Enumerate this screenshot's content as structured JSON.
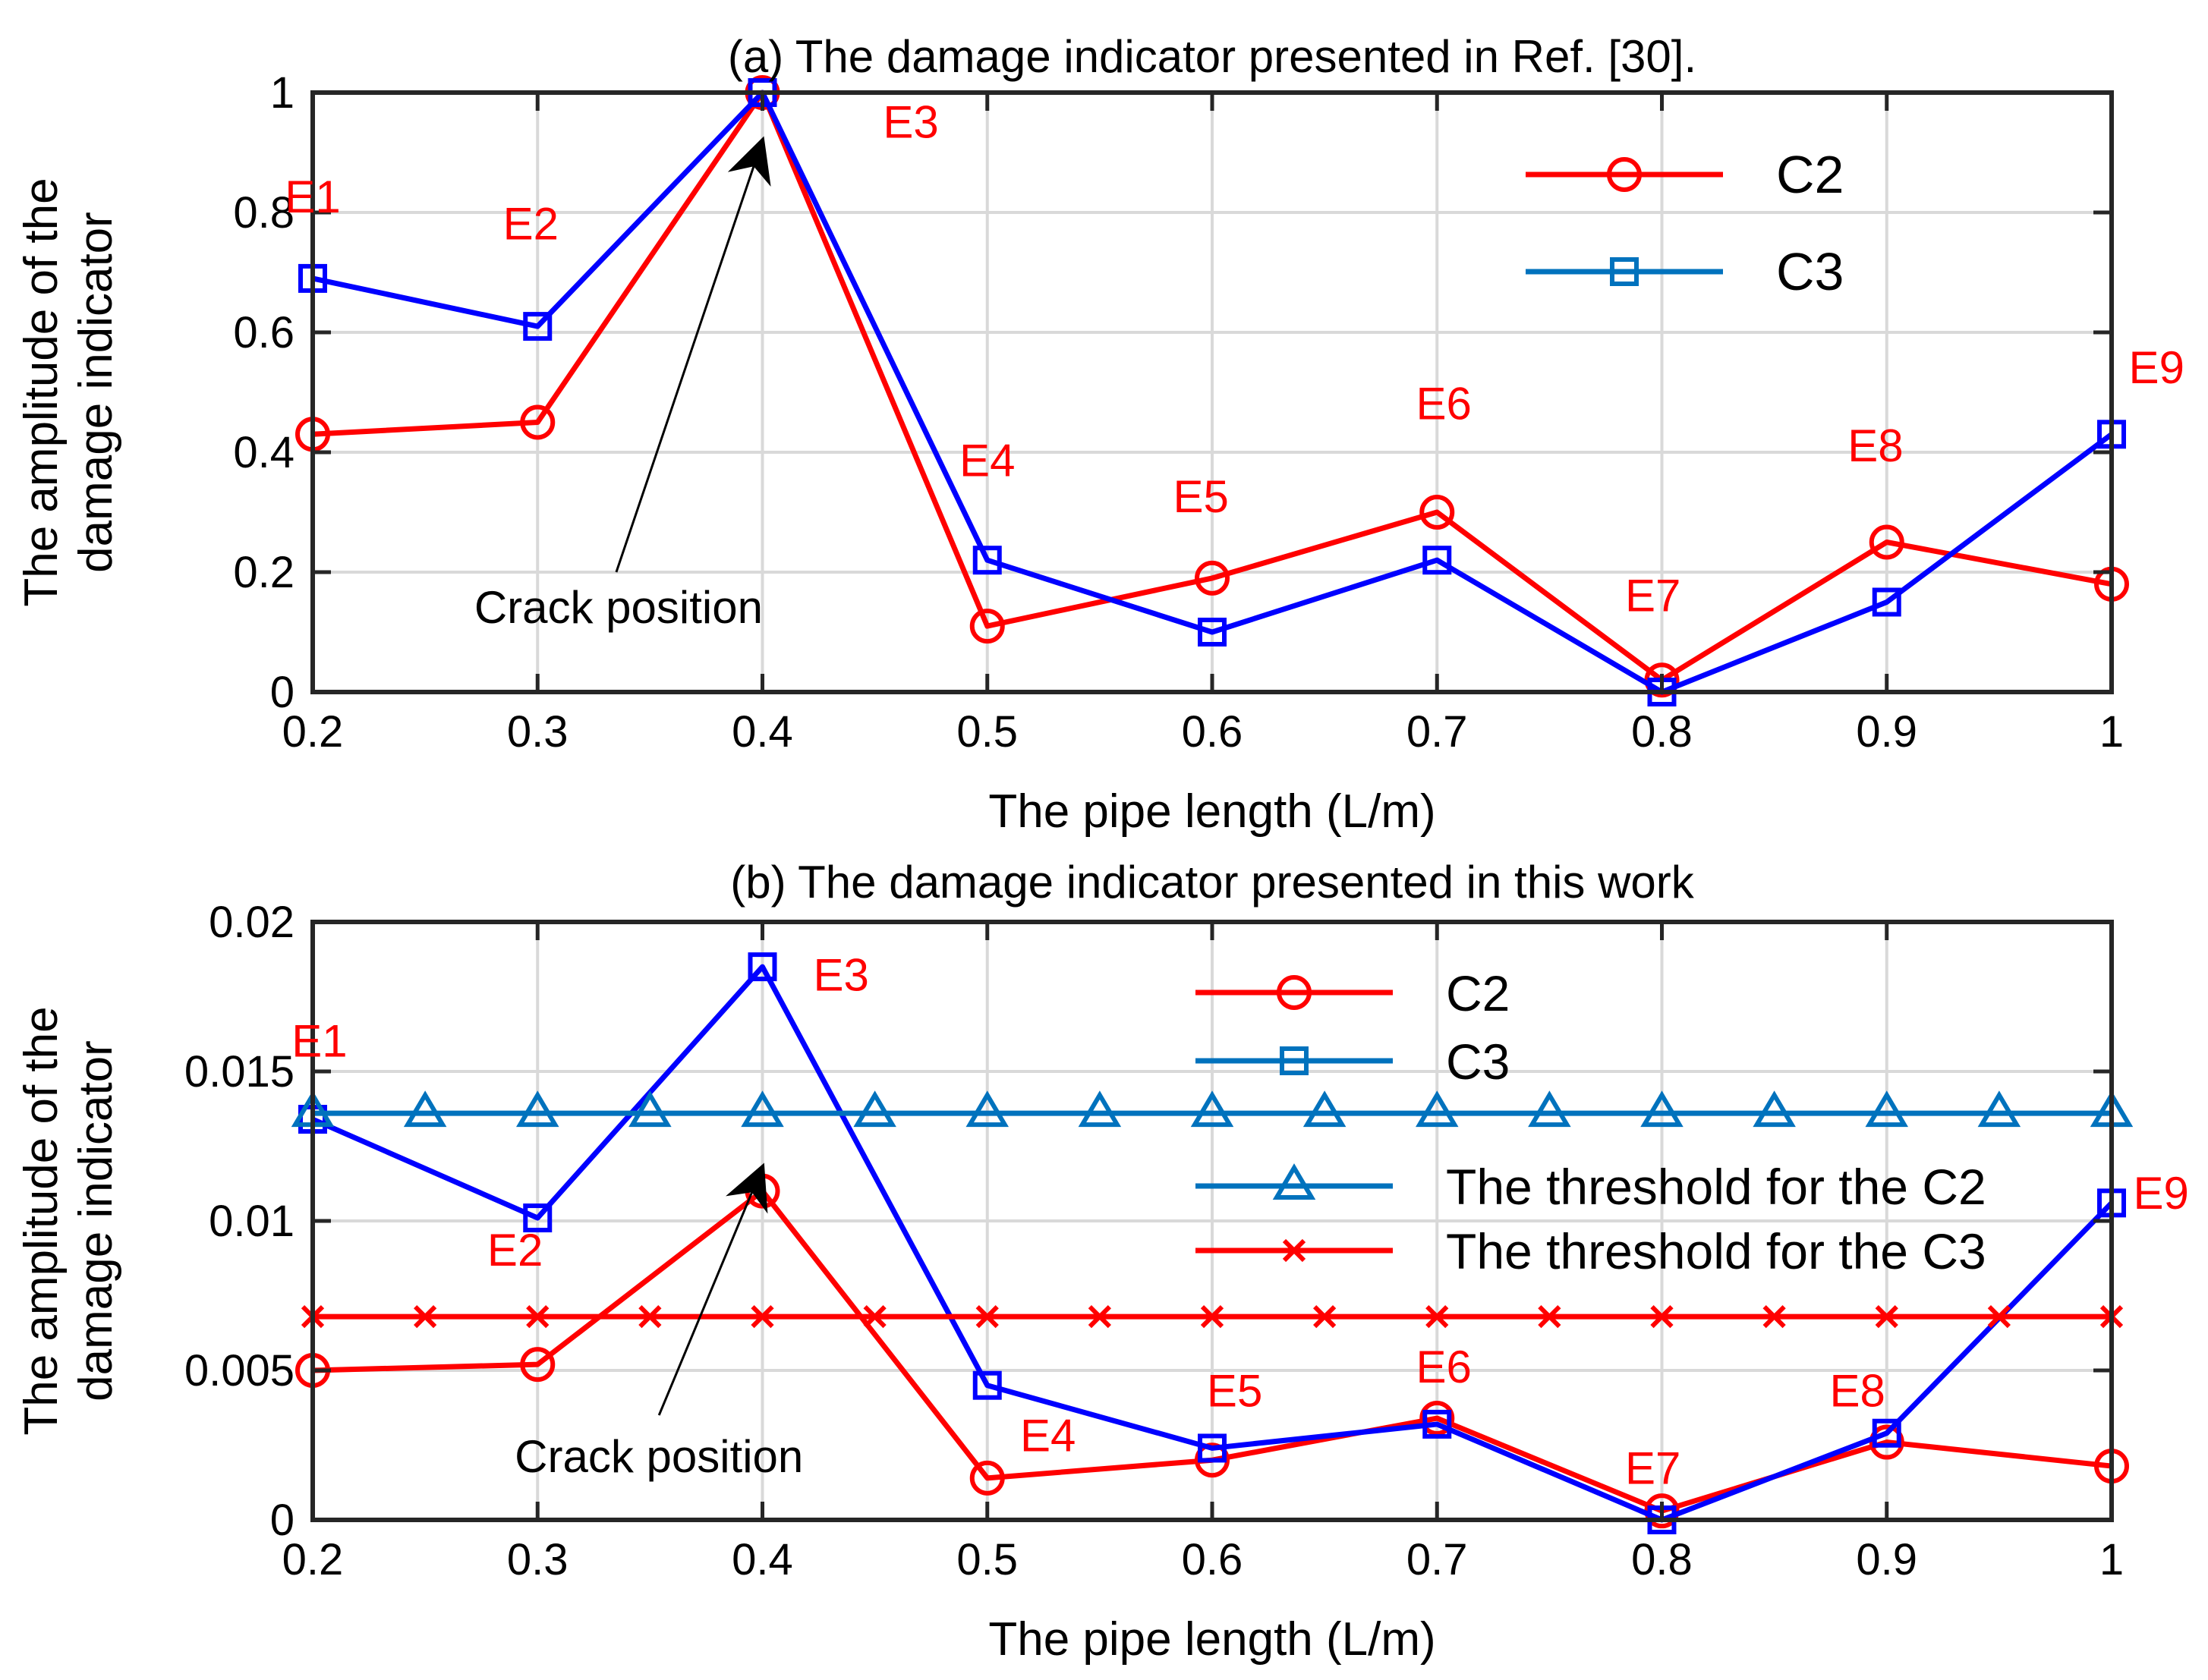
{
  "colors": {
    "c2": "#ff0000",
    "c3": "#0000ff",
    "legend_c3": "#0072bd",
    "threshold_c2": "#0072bd",
    "threshold_c3": "#ff0000",
    "grid": "#d9d9d9",
    "point_label": "#ff0000"
  },
  "chart_data": [
    {
      "type": "line",
      "title": "(a) The damage indicator presented in Ref. [30].",
      "xlabel": "The pipe length (L/m)",
      "ylabel_lines": [
        "The amplitude of the",
        "damage indicator"
      ],
      "xlim": [
        0.2,
        1.0
      ],
      "ylim": [
        0,
        1
      ],
      "xticks": [
        0.2,
        0.3,
        0.4,
        0.5,
        0.6,
        0.7,
        0.8,
        0.9,
        1.0
      ],
      "xtick_labels": [
        "0.2",
        "0.3",
        "0.4",
        "0.5",
        "0.6",
        "0.7",
        "0.8",
        "0.9",
        "1"
      ],
      "yticks": [
        0,
        0.2,
        0.4,
        0.6,
        0.8,
        1.0
      ],
      "ytick_labels": [
        "0",
        "0.2",
        "0.4",
        "0.6",
        "0.8",
        "1"
      ],
      "grid": true,
      "legend_position": "top-right",
      "x": [
        0.2,
        0.3,
        0.4,
        0.5,
        0.6,
        0.7,
        0.8,
        0.9,
        1.0
      ],
      "series": [
        {
          "name": "C2",
          "marker": "circle",
          "color_key": "c2",
          "legend_color_key": "c2",
          "values": [
            0.43,
            0.45,
            1.0,
            0.11,
            0.19,
            0.3,
            0.02,
            0.25,
            0.18
          ]
        },
        {
          "name": "C3",
          "marker": "square",
          "color_key": "c3",
          "legend_color_key": "legend_c3",
          "values": [
            0.69,
            0.61,
            1.0,
            0.22,
            0.1,
            0.22,
            0.0,
            0.15,
            0.43
          ]
        }
      ],
      "point_labels": [
        {
          "text": "E1",
          "x": 0.2,
          "y": 0.8
        },
        {
          "text": "E2",
          "x": 0.297,
          "y": 0.755
        },
        {
          "text": "E3",
          "x": 0.466,
          "y": 0.925
        },
        {
          "text": "E4",
          "x": 0.5,
          "y": 0.36
        },
        {
          "text": "E5",
          "x": 0.595,
          "y": 0.3
        },
        {
          "text": "E6",
          "x": 0.703,
          "y": 0.455
        },
        {
          "text": "E7",
          "x": 0.796,
          "y": 0.135
        },
        {
          "text": "E8",
          "x": 0.895,
          "y": 0.385
        },
        {
          "text": "E9",
          "x": 1.02,
          "y": 0.515
        }
      ],
      "annotation": {
        "text": "Crack position",
        "text_x": 0.336,
        "text_y": 0.115,
        "arrow_from": [
          0.335,
          0.2
        ],
        "arrow_to": [
          0.4,
          0.92
        ]
      }
    },
    {
      "type": "line",
      "title": "(b) The damage indicator presented in this work",
      "xlabel": "The pipe length (L/m)",
      "ylabel_lines": [
        "The amplitude of the",
        "damage indicator"
      ],
      "xlim": [
        0.2,
        1.0
      ],
      "ylim": [
        0,
        0.02
      ],
      "xticks": [
        0.2,
        0.3,
        0.4,
        0.5,
        0.6,
        0.7,
        0.8,
        0.9,
        1.0
      ],
      "xtick_labels": [
        "0.2",
        "0.3",
        "0.4",
        "0.5",
        "0.6",
        "0.7",
        "0.8",
        "0.9",
        "1"
      ],
      "yticks": [
        0,
        0.005,
        0.01,
        0.015,
        0.02
      ],
      "ytick_labels": [
        "0",
        "0.005",
        "0.01",
        "0.015",
        "0.02"
      ],
      "grid": true,
      "legend_position": "top-right",
      "x": [
        0.2,
        0.3,
        0.4,
        0.5,
        0.6,
        0.7,
        0.8,
        0.9,
        1.0
      ],
      "series": [
        {
          "name": "C2",
          "marker": "circle",
          "color_key": "c2",
          "legend_color_key": "c2",
          "values": [
            0.005,
            0.0052,
            0.011,
            0.0014,
            0.002,
            0.0034,
            0.0003,
            0.0026,
            0.0018
          ]
        },
        {
          "name": "C3",
          "marker": "square",
          "color_key": "c3",
          "legend_color_key": "legend_c3",
          "values": [
            0.0134,
            0.0101,
            0.0185,
            0.0045,
            0.0024,
            0.0032,
            0.0,
            0.0029,
            0.0106
          ]
        },
        {
          "name": "The threshold for the C2",
          "marker": "triangle",
          "color_key": "threshold_c2",
          "legend_color_key": "threshold_c2",
          "x": [
            0.2,
            0.25,
            0.3,
            0.35,
            0.4,
            0.45,
            0.5,
            0.55,
            0.6,
            0.65,
            0.7,
            0.75,
            0.8,
            0.85,
            0.9,
            0.95,
            1.0
          ],
          "values": [
            0.0136,
            0.0136,
            0.0136,
            0.0136,
            0.0136,
            0.0136,
            0.0136,
            0.0136,
            0.0136,
            0.0136,
            0.0136,
            0.0136,
            0.0136,
            0.0136,
            0.0136,
            0.0136,
            0.0136
          ]
        },
        {
          "name": "The threshold for the C3",
          "marker": "x",
          "color_key": "threshold_c3",
          "legend_color_key": "threshold_c3",
          "x": [
            0.2,
            0.25,
            0.3,
            0.35,
            0.4,
            0.45,
            0.5,
            0.55,
            0.6,
            0.65,
            0.7,
            0.75,
            0.8,
            0.85,
            0.9,
            0.95,
            1.0
          ],
          "values": [
            0.0068,
            0.0068,
            0.0068,
            0.0068,
            0.0068,
            0.0068,
            0.0068,
            0.0068,
            0.0068,
            0.0068,
            0.0068,
            0.0068,
            0.0068,
            0.0068,
            0.0068,
            0.0068,
            0.0068
          ]
        }
      ],
      "point_labels": [
        {
          "text": "E1",
          "x": 0.203,
          "y": 0.0155
        },
        {
          "text": "E2",
          "x": 0.29,
          "y": 0.0085
        },
        {
          "text": "E3",
          "x": 0.435,
          "y": 0.0177
        },
        {
          "text": "E4",
          "x": 0.527,
          "y": 0.0023
        },
        {
          "text": "E5",
          "x": 0.61,
          "y": 0.0038
        },
        {
          "text": "E6",
          "x": 0.703,
          "y": 0.0046
        },
        {
          "text": "E7",
          "x": 0.796,
          "y": 0.0012
        },
        {
          "text": "E8",
          "x": 0.887,
          "y": 0.0038
        },
        {
          "text": "E9",
          "x": 1.022,
          "y": 0.0104
        }
      ],
      "annotation": {
        "text": "Crack position",
        "text_x": 0.354,
        "text_y": 0.0016,
        "arrow_from": [
          0.354,
          0.0035
        ],
        "arrow_to": [
          0.4,
          0.0118
        ]
      }
    }
  ]
}
